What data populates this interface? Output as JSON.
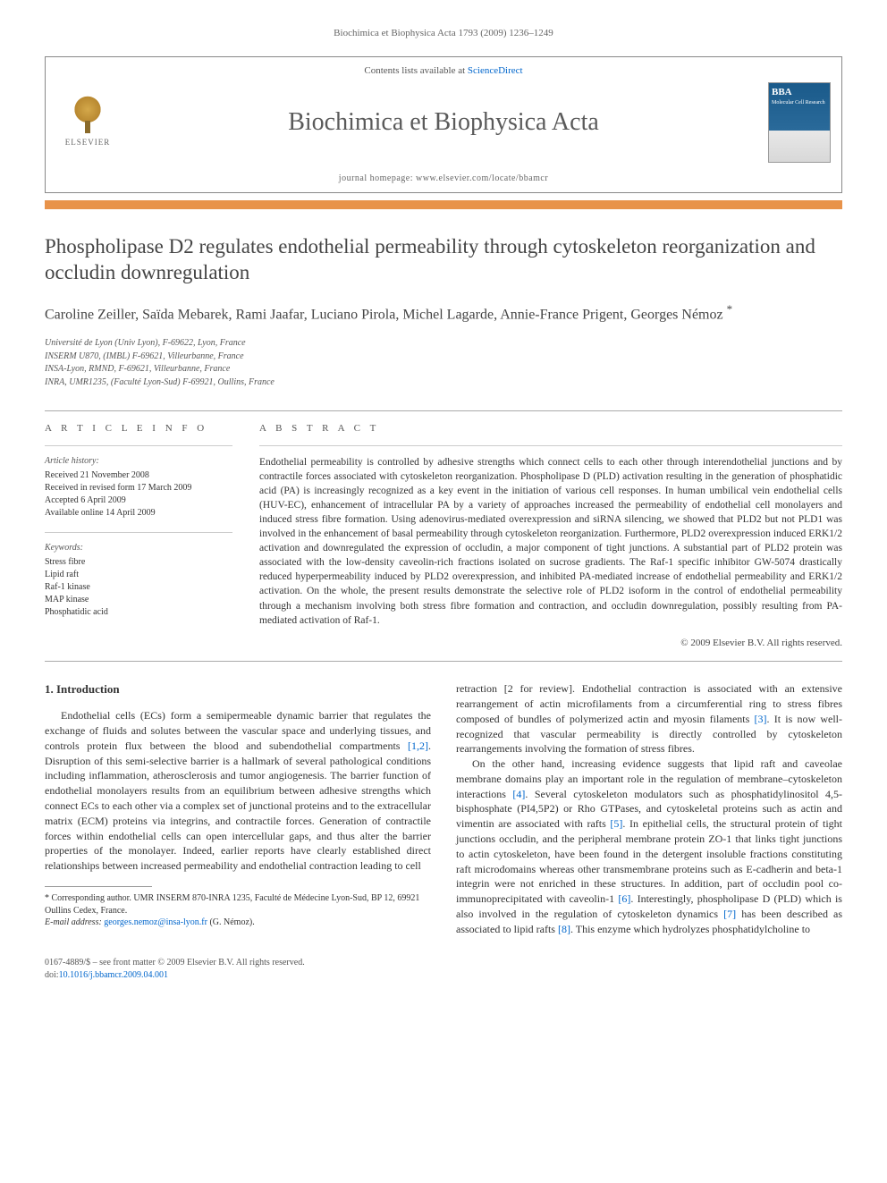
{
  "header": {
    "citation": "Biochimica et Biophysica Acta 1793 (2009) 1236–1249"
  },
  "banner": {
    "contents_line_prefix": "Contents lists available at ",
    "contents_link": "ScienceDirect",
    "publisher": "ELSEVIER",
    "journal_title": "Biochimica et Biophysica Acta",
    "homepage_label": "journal homepage: ",
    "homepage_url": "www.elsevier.com/locate/bbamcr",
    "cover_abbrev": "BBA",
    "cover_subtitle": "Molecular Cell Research"
  },
  "article": {
    "title": "Phospholipase D2 regulates endothelial permeability through cytoskeleton reorganization and occludin downregulation",
    "authors": "Caroline Zeiller, Saïda Mebarek, Rami Jaafar, Luciano Pirola, Michel Lagarde, Annie-France Prigent, Georges Némoz",
    "corr_symbol": "*",
    "affiliations": [
      "Université de Lyon (Univ Lyon), F-69622, Lyon, France",
      "INSERM U870, (IMBL) F-69621, Villeurbanne, France",
      "INSA-Lyon, RMND, F-69621, Villeurbanne, France",
      "INRA, UMR1235, (Faculté Lyon-Sud) F-69921, Oullins, France"
    ]
  },
  "info": {
    "heading": "A R T I C L E   I N F O",
    "history_label": "Article history:",
    "history": [
      "Received 21 November 2008",
      "Received in revised form 17 March 2009",
      "Accepted 6 April 2009",
      "Available online 14 April 2009"
    ],
    "keywords_label": "Keywords:",
    "keywords": [
      "Stress fibre",
      "Lipid raft",
      "Raf-1 kinase",
      "MAP kinase",
      "Phosphatidic acid"
    ]
  },
  "abstract": {
    "heading": "A B S T R A C T",
    "text": "Endothelial permeability is controlled by adhesive strengths which connect cells to each other through interendothelial junctions and by contractile forces associated with cytoskeleton reorganization. Phospholipase D (PLD) activation resulting in the generation of phosphatidic acid (PA) is increasingly recognized as a key event in the initiation of various cell responses. In human umbilical vein endothelial cells (HUV-EC), enhancement of intracellular PA by a variety of approaches increased the permeability of endothelial cell monolayers and induced stress fibre formation. Using adenovirus-mediated overexpression and siRNA silencing, we showed that PLD2 but not PLD1 was involved in the enhancement of basal permeability through cytoskeleton reorganization. Furthermore, PLD2 overexpression induced ERK1/2 activation and downregulated the expression of occludin, a major component of tight junctions. A substantial part of PLD2 protein was associated with the low-density caveolin-rich fractions isolated on sucrose gradients. The Raf-1 specific inhibitor GW-5074 drastically reduced hyperpermeability induced by PLD2 overexpression, and inhibited PA-mediated increase of endothelial permeability and ERK1/2 activation. On the whole, the present results demonstrate the selective role of PLD2 isoform in the control of endothelial permeability through a mechanism involving both stress fibre formation and contraction, and occludin downregulation, possibly resulting from PA-mediated activation of Raf-1.",
    "copyright": "© 2009 Elsevier B.V. All rights reserved."
  },
  "body": {
    "section_heading": "1. Introduction",
    "col1_p1": "Endothelial cells (ECs) form a semipermeable dynamic barrier that regulates the exchange of fluids and solutes between the vascular space and underlying tissues, and controls protein flux between the blood and subendothelial compartments [1,2]. Disruption of this semi-selective barrier is a hallmark of several pathological conditions including inflammation, atherosclerosis and tumor angiogenesis. The barrier function of endothelial monolayers results from an equilibrium between adhesive strengths which connect ECs to each other via a complex set of junctional proteins and to the extracellular matrix (ECM) proteins via integrins, and contractile forces. Generation of contractile forces within endothelial cells can open intercellular gaps, and thus alter the barrier properties of the monolayer. Indeed, earlier reports have clearly established direct relationships between increased permeability and endothelial contraction leading to cell",
    "col2_p1": "retraction [2 for review]. Endothelial contraction is associated with an extensive rearrangement of actin microfilaments from a circumferential ring to stress fibres composed of bundles of polymerized actin and myosin filaments [3]. It is now well-recognized that vascular permeability is directly controlled by cytoskeleton rearrangements involving the formation of stress fibres.",
    "col2_p2": "On the other hand, increasing evidence suggests that lipid raft and caveolae membrane domains play an important role in the regulation of membrane–cytoskeleton interactions [4]. Several cytoskeleton modulators such as phosphatidylinositol 4,5-bisphosphate (PI4,5P2) or Rho GTPases, and cytoskeletal proteins such as actin and vimentin are associated with rafts [5]. In epithelial cells, the structural protein of tight junctions occludin, and the peripheral membrane protein ZO-1 that links tight junctions to actin cytoskeleton, have been found in the detergent insoluble fractions constituting raft microdomains whereas other transmembrane proteins such as E-cadherin and beta-1 integrin were not enriched in these structures. In addition, part of occludin pool co-immunoprecipitated with caveolin-1 [6]. Interestingly, phospholipase D (PLD) which is also involved in the regulation of cytoskeleton dynamics [7] has been described as associated to lipid rafts [8]. This enzyme which hydrolyzes phosphatidylcholine to"
  },
  "footnotes": {
    "corr": "* Corresponding author. UMR INSERM 870-INRA 1235, Faculté de Médecine Lyon-Sud, BP 12, 69921 Oullins Cedex, France.",
    "email_label": "E-mail address: ",
    "email": "georges.nemoz@insa-lyon.fr",
    "email_suffix": " (G. Némoz)."
  },
  "footer": {
    "left_line1": "0167-4889/$ – see front matter © 2009 Elsevier B.V. All rights reserved.",
    "doi_prefix": "doi:",
    "doi": "10.1016/j.bbamcr.2009.04.001"
  },
  "refs": {
    "r12": "[1,2]",
    "r3": "[3]",
    "r4": "[4]",
    "r5": "[5]",
    "r6": "[6]",
    "r7": "[7]",
    "r8": "[8]"
  }
}
